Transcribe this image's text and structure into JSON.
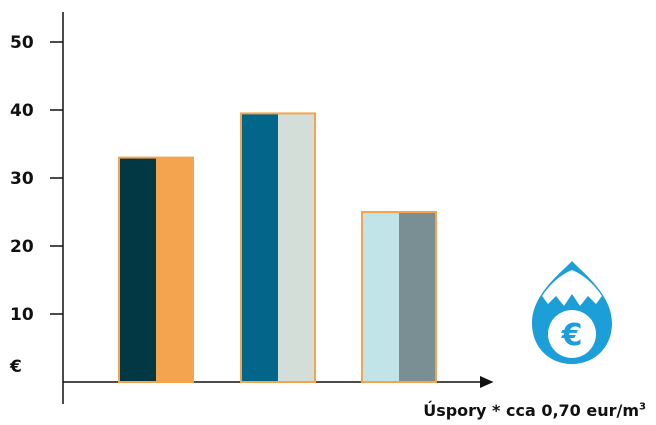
{
  "chart_data": {
    "type": "bar",
    "title": "",
    "xlabel": "Úspory * cca 0,70 eur/m³",
    "ylabel": "€",
    "ylim": [
      0,
      52
    ],
    "yticks": [
      10,
      20,
      30,
      40,
      50
    ],
    "grid": false,
    "groups": [
      {
        "values": [
          33,
          33
        ],
        "colors": [
          "#023843",
          "#f4a44f"
        ]
      },
      {
        "values": [
          39.5,
          39.5
        ],
        "colors": [
          "#01668a",
          "#d3ded9"
        ]
      },
      {
        "values": [
          25,
          25
        ],
        "colors": [
          "#c0e4e7",
          "#7a8f93"
        ]
      }
    ],
    "bar_outline_color": "#f4a44f"
  },
  "icon": {
    "name": "water-drop-euro-icon",
    "symbol": "€",
    "color": "#1c9ed8"
  },
  "caption": {
    "text": "Úspory * cca 0,70 eur/m",
    "superscript": "3"
  }
}
